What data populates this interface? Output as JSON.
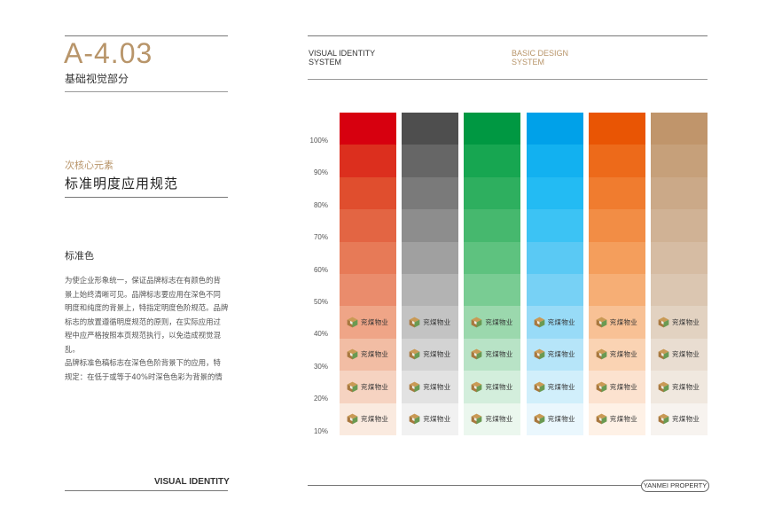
{
  "page": {
    "code": "A-4.03",
    "subtitle": "基础视觉部分",
    "section_en": "次核心元素",
    "section_title": "标准明度应用规范",
    "standard_title": "标准色",
    "body_lines": [
      "为使企业形象统一，保证品牌标志在有颜色的背",
      "景上始终清晰可见。品牌标志要应用在深色不同",
      "明度和纯度的背景上，特指定明度色阶规范。品牌",
      "标志的放置遵循明度规范的原则，在实际应用过",
      "程中应严格按照本页规范执行，以免造成视觉混",
      "乱。",
      "品牌标准色稿标志在深色色阶背景下的应用，特",
      "规定：在低于或等于40%时深色色彩为背景的情"
    ],
    "header_left": [
      "VISUAL IDENTITY",
      "SYSTEM"
    ],
    "header_right": [
      "BASIC DESIGN",
      "SYSTEM"
    ],
    "footer_left": "VISUAL IDENTITY",
    "footer_right": "YANMEI PROPERTY"
  },
  "palette": {
    "brand_gold": "#b8956a",
    "logo_text": "兖煤物业",
    "percent_labels": [
      "100%",
      "90%",
      "80%",
      "70%",
      "60%",
      "50%",
      "40%",
      "30%",
      "20%",
      "10%"
    ],
    "columns": [
      {
        "name": "red",
        "colors": [
          "#d7000f",
          "#dc2f1e",
          "#e04e2e",
          "#e36543",
          "#e77a57",
          "#ea8c6c",
          "#efa587",
          "#f2bda4",
          "#f6d3c1",
          "#faeadf"
        ]
      },
      {
        "name": "gray",
        "colors": [
          "#4e4e4e",
          "#666666",
          "#7a7a7a",
          "#8d8d8d",
          "#a0a0a0",
          "#b3b3b3",
          "#c3c3c3",
          "#d3d3d3",
          "#e2e2e2",
          "#f1f1f1"
        ]
      },
      {
        "name": "green",
        "colors": [
          "#009842",
          "#17a651",
          "#2eaf5f",
          "#46b86e",
          "#5ec27f",
          "#79cc93",
          "#9bd8ad",
          "#b8e3c6",
          "#d3eedc",
          "#ebf7ee"
        ]
      },
      {
        "name": "blue",
        "colors": [
          "#00a1e9",
          "#12b1f0",
          "#23bbf3",
          "#3cc3f4",
          "#5ac9f4",
          "#77d1f5",
          "#98dbf7",
          "#b6e5f9",
          "#d1effb",
          "#eaf7fd"
        ]
      },
      {
        "name": "orange",
        "colors": [
          "#e95504",
          "#ed6a1a",
          "#f07c2f",
          "#f28d45",
          "#f49e5c",
          "#f6ae75",
          "#f8c195",
          "#fad3b3",
          "#fce2cf",
          "#fef1e6"
        ]
      },
      {
        "name": "tan",
        "colors": [
          "#c0956b",
          "#c6a07a",
          "#cba988",
          "#d0b295",
          "#d6bca3",
          "#dbc6b1",
          "#e2d2c1",
          "#e9ddd1",
          "#f0e8df",
          "#f7f3ef"
        ]
      }
    ]
  }
}
